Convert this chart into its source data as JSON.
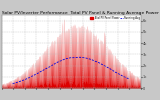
{
  "title": "Solar PV/Inverter Performance  Total PV Panel & Running Average Power Output",
  "bg_color": "#c8c8c8",
  "plot_bg_color": "#ffffff",
  "red_color": "#dd0000",
  "blue_color": "#0000dd",
  "grid_color": "#bbbbbb",
  "ylim": [
    0,
    6500
  ],
  "yticks": [
    0,
    1000,
    2000,
    3000,
    4000,
    5000,
    6000
  ],
  "ytick_labels": [
    "0",
    "1k",
    "2k",
    "3k",
    "4k",
    "5k",
    "6k"
  ],
  "legend": [
    "Total PV Panel Power",
    "Running Avg"
  ],
  "title_fontsize": 3.2,
  "tick_fontsize": 2.5,
  "num_days": 120,
  "points_per_day": 8
}
